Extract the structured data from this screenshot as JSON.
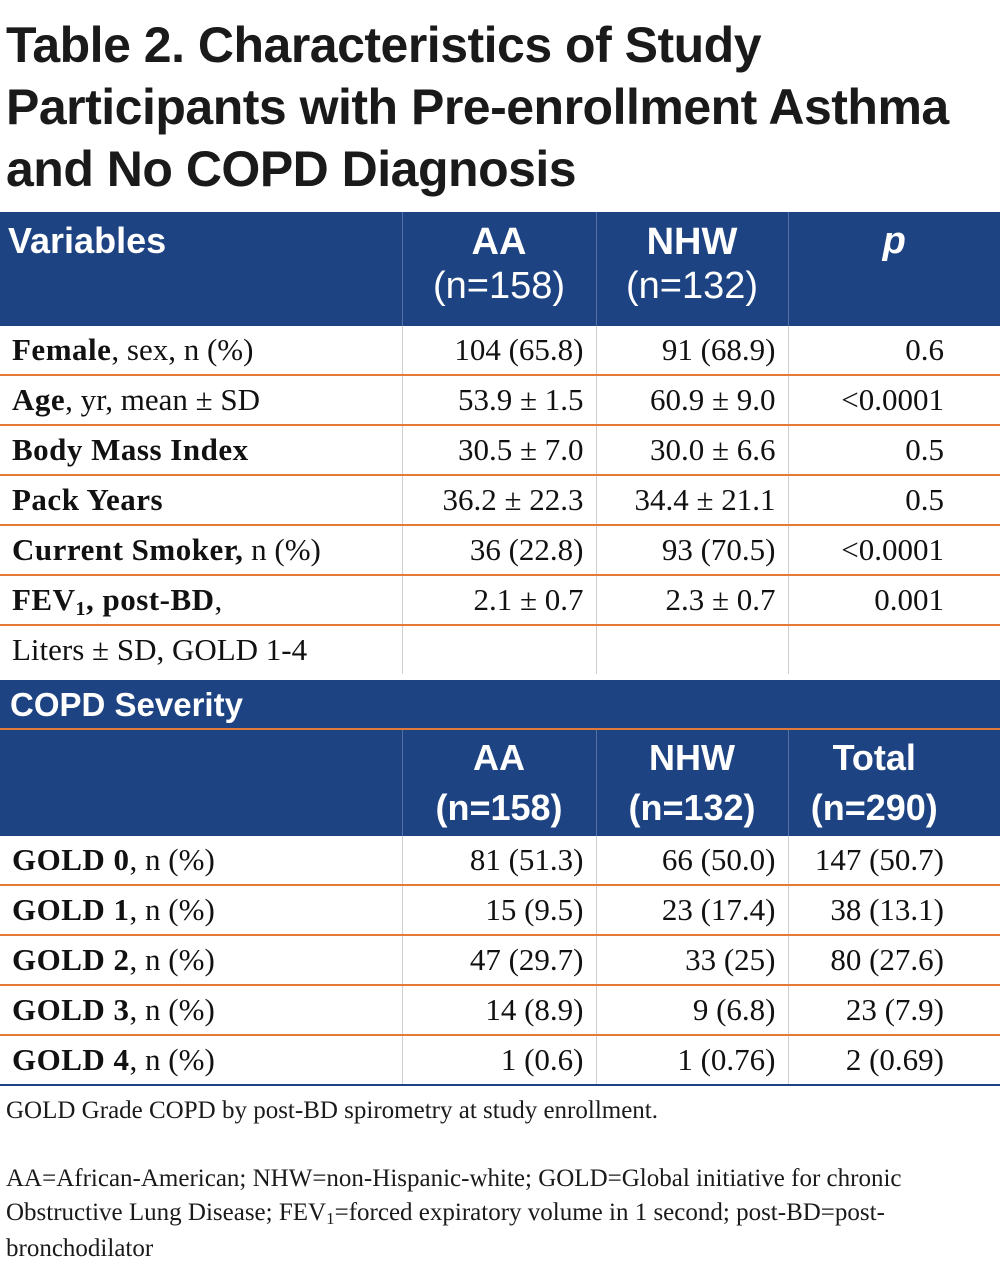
{
  "title": "Table 2. Characteristics of Study Participants with Pre-enrollment Asthma and No COPD Diagnosis",
  "table1": {
    "headers": {
      "variables": "Variables",
      "aa": "AA",
      "aa_n": "(n=158)",
      "nhw": "NHW",
      "nhw_n": "(n=132)",
      "p": "p"
    },
    "rows": [
      {
        "label_bold": "Female",
        "label_rest": ", sex, n (%)",
        "aa": "104 (65.8)",
        "nhw": "91 (68.9)",
        "p": "0.6"
      },
      {
        "label_bold": "Age",
        "label_rest": ", yr, mean ± SD",
        "aa": "53.9 ± 1.5",
        "nhw": "60.9 ± 9.0",
        "p": "<0.0001"
      },
      {
        "label_bold": "Body Mass Index",
        "label_rest": "",
        "aa": "30.5 ± 7.0",
        "nhw": "30.0 ± 6.6",
        "p": "0.5"
      },
      {
        "label_bold": "Pack Years",
        "label_rest": "",
        "aa": "36.2 ± 22.3",
        "nhw": "34.4 ± 21.1",
        "p": "0.5"
      },
      {
        "label_bold": "Current Smoker,",
        "label_rest": " n (%)",
        "aa": "36 (22.8)",
        "nhw": "93 (70.5)",
        "p": "<0.0001"
      },
      {
        "label_bold": "FEV",
        "label_sub": "1",
        "label_bold2": ", post-BD",
        "label_rest": ",",
        "aa": "2.1 ± 0.7",
        "nhw": "2.3 ± 0.7",
        "p": "0.001"
      },
      {
        "label_rest": "Liters ± SD, GOLD 1-4",
        "aa": "",
        "nhw": "",
        "p": ""
      }
    ]
  },
  "section_title": "COPD Severity",
  "table2": {
    "headers": {
      "aa": "AA",
      "aa_n": "(n=158)",
      "nhw": "NHW",
      "nhw_n": "(n=132)",
      "total": "Total",
      "total_n": "(n=290)"
    },
    "rows": [
      {
        "label_bold": "GOLD 0",
        "label_rest": ", n (%)",
        "aa": "81 (51.3)",
        "nhw": "66 (50.0)",
        "total": "147 (50.7)"
      },
      {
        "label_bold": "GOLD 1",
        "label_rest": ", n (%)",
        "aa": "15 (9.5)",
        "nhw": "23 (17.4)",
        "total": "38 (13.1)"
      },
      {
        "label_bold": "GOLD 2",
        "label_rest": ", n (%)",
        "aa": "47 (29.7)",
        "nhw": "33 (25)",
        "total": "80 (27.6)"
      },
      {
        "label_bold": "GOLD 3",
        "label_rest": ", n (%)",
        "aa": "14 (8.9)",
        "nhw": "9 (6.8)",
        "total": "23 (7.9)"
      },
      {
        "label_bold": "GOLD 4",
        "label_rest": ", n (%)",
        "aa": "1 (0.6)",
        "nhw": "1 (0.76)",
        "total": "2 (0.69)"
      }
    ]
  },
  "footnotes": {
    "note1": "GOLD Grade COPD by post-BD spirometry at study enrollment.",
    "note2_a": "AA=African-American;  NHW=non-Hispanic-white; GOLD=Global initiative for chronic Obstructive Lung Disease; FEV",
    "note2_sub": "1",
    "note2_b": "=forced expiratory volume in 1 second; post-BD=post-bronchodilator"
  },
  "colors": {
    "header_blue": "#1e4382",
    "row_divider_orange": "#e37a3a"
  }
}
